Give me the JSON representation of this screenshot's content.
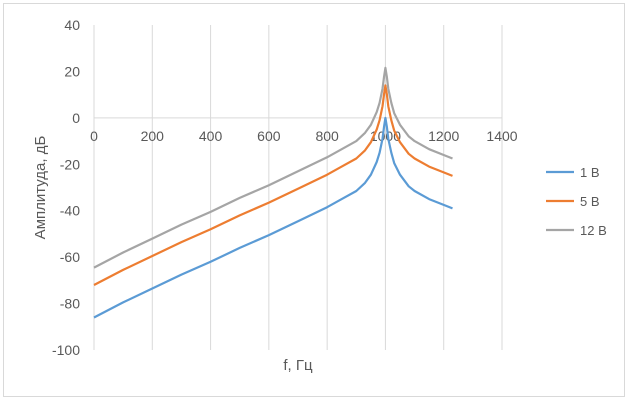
{
  "chart_data": {
    "type": "line",
    "title": "",
    "xlabel": "f, Гц",
    "ylabel": "Амплитуда, дБ",
    "xlim": [
      0,
      1400
    ],
    "ylim": [
      -100,
      40
    ],
    "x_ticks": [
      0,
      200,
      400,
      600,
      800,
      1000,
      1200,
      1400
    ],
    "y_ticks": [
      40,
      20,
      0,
      -20,
      -40,
      -60,
      -80,
      -100
    ],
    "grid": "vertical",
    "legend": "right",
    "x": [
      0,
      100,
      200,
      300,
      400,
      500,
      600,
      700,
      800,
      850,
      900,
      930,
      950,
      970,
      980,
      990,
      995,
      1000,
      1005,
      1010,
      1020,
      1030,
      1050,
      1080,
      1100,
      1150,
      1200,
      1230
    ],
    "series": [
      {
        "name": "1 В",
        "color": "#5b9bd5",
        "values": [
          -86,
          -79.5,
          -73.5,
          -67.5,
          -62,
          -56,
          -50.5,
          -44.5,
          -38.5,
          -35,
          -31.5,
          -28,
          -24.5,
          -19,
          -15,
          -9,
          -4,
          0,
          -4,
          -9,
          -15,
          -19.5,
          -24.5,
          -29.5,
          -31.5,
          -35,
          -37.5,
          -39
        ]
      },
      {
        "name": "5 В",
        "color": "#ed7d31",
        "values": [
          -72,
          -65.5,
          -59.5,
          -53.5,
          -48,
          -42,
          -36.5,
          -30.5,
          -24.5,
          -21,
          -17.5,
          -14,
          -10.5,
          -5,
          -1,
          5,
          10,
          14,
          10,
          5,
          -1,
          -5.5,
          -10.5,
          -15.5,
          -17.5,
          -21,
          -23.5,
          -25
        ]
      },
      {
        "name": "12 В",
        "color": "#a5a5a5",
        "values": [
          -64.5,
          -58,
          -52,
          -46,
          -40.5,
          -34.5,
          -29,
          -23,
          -17,
          -13.5,
          -10,
          -6.5,
          -3,
          2.5,
          6.5,
          12.5,
          17.5,
          21.5,
          17.5,
          12.5,
          6.5,
          2,
          -3,
          -8,
          -10,
          -13.5,
          -16,
          -17.5
        ]
      }
    ]
  }
}
